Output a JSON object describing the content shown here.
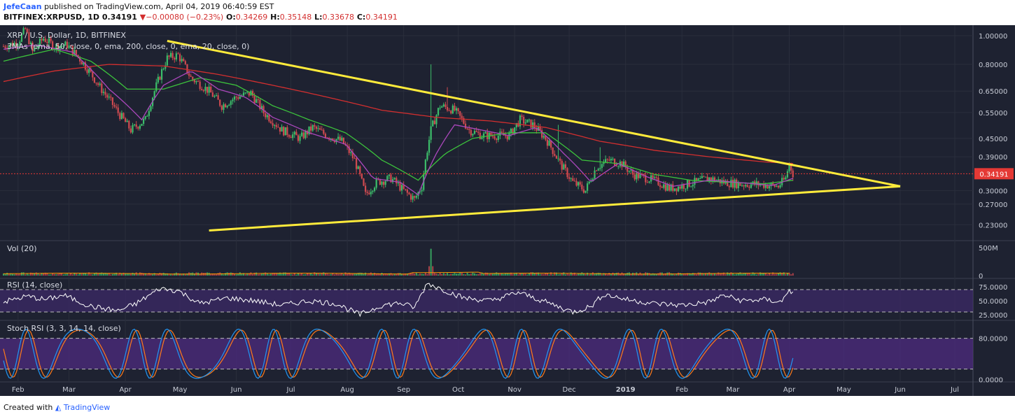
{
  "header": {
    "author": "JefeCaan",
    "published": "published on TradingView.com, April 04, 2019 06:40:59 EST",
    "symbol": "BITFINEX:XRPUSD, 1D",
    "last": "0.34191",
    "arrow": "▼",
    "change": "−0.00080 (−0.23%)",
    "o_label": "O:",
    "o": "0.34269",
    "h_label": "H:",
    "h": "0.35148",
    "l_label": "L:",
    "l": "0.33678",
    "c_label": "C:",
    "c": "0.34191"
  },
  "footer": {
    "created": "Created with",
    "brand": "TradingView"
  },
  "colors": {
    "background": "#1e2231",
    "panel_bg": "#1e2231",
    "grid": "#2a2e3c",
    "up": "#3cbd6a",
    "down": "#d04a50",
    "trendline": "#ffeb3b",
    "ema50": "#ab47bc",
    "ema200_green": "#3cc23c",
    "ema200_red": "#d32f2f",
    "rsi": "#ffffff",
    "rsi_band": "#3d2a6b",
    "stoch_band": "#4a2a7a",
    "stoch_k": "#2196f3",
    "stoch_d": "#ff7a1a",
    "price_line": "#e53935",
    "axis_text": "#c8ccd6"
  },
  "chart_data": {
    "type": "candlestick",
    "title": "XRP / U.S. Dollar, 1D, BITFINEX",
    "indicator_label": "3MAs (ema, 50, close, 0, ema, 200, close, 0, ema, 20, close, 0)",
    "y_scale": "log",
    "ylim": [
      0.21,
      1.05
    ],
    "y_ticks": [
      "1.00000",
      "0.80000",
      "0.65000",
      "0.55000",
      "0.45000",
      "0.39000",
      "0.30000",
      "0.27000",
      "0.23000"
    ],
    "y_tick_values": [
      1.0,
      0.8,
      0.65,
      0.55,
      0.45,
      0.39,
      0.3,
      0.27,
      0.23
    ],
    "last_price_label": "0.34191",
    "last_price": 0.34191,
    "x_labels": [
      "Feb",
      "Mar",
      "Apr",
      "May",
      "Jun",
      "Jul",
      "Aug",
      "Sep",
      "Oct",
      "Nov",
      "Dec",
      "2019",
      "Feb",
      "Mar",
      "Apr",
      "May",
      "Jun",
      "Jul"
    ],
    "x_label_days": [
      0,
      28,
      59,
      89,
      120,
      150,
      181,
      212,
      242,
      273,
      303,
      334,
      365,
      393,
      424,
      454,
      485,
      515
    ],
    "x_range_days": [
      -8,
      525
    ],
    "data_end_day": 426,
    "close_anchors": [
      [
        -8,
        0.92
      ],
      [
        0,
        0.95
      ],
      [
        4,
        1.05
      ],
      [
        8,
        0.88
      ],
      [
        14,
        0.98
      ],
      [
        20,
        0.92
      ],
      [
        27,
        0.93
      ],
      [
        35,
        0.82
      ],
      [
        45,
        0.67
      ],
      [
        55,
        0.55
      ],
      [
        62,
        0.48
      ],
      [
        70,
        0.52
      ],
      [
        75,
        0.65
      ],
      [
        82,
        0.84
      ],
      [
        88,
        0.86
      ],
      [
        95,
        0.72
      ],
      [
        105,
        0.65
      ],
      [
        112,
        0.58
      ],
      [
        120,
        0.62
      ],
      [
        128,
        0.64
      ],
      [
        135,
        0.55
      ],
      [
        145,
        0.48
      ],
      [
        155,
        0.45
      ],
      [
        162,
        0.49
      ],
      [
        170,
        0.46
      ],
      [
        178,
        0.44
      ],
      [
        185,
        0.38
      ],
      [
        191,
        0.29
      ],
      [
        197,
        0.32
      ],
      [
        205,
        0.33
      ],
      [
        212,
        0.3
      ],
      [
        218,
        0.28
      ],
      [
        222,
        0.31
      ],
      [
        227,
        0.48
      ],
      [
        232,
        0.58
      ],
      [
        240,
        0.56
      ],
      [
        248,
        0.48
      ],
      [
        255,
        0.46
      ],
      [
        262,
        0.46
      ],
      [
        270,
        0.46
      ],
      [
        276,
        0.52
      ],
      [
        283,
        0.5
      ],
      [
        290,
        0.45
      ],
      [
        298,
        0.37
      ],
      [
        305,
        0.32
      ],
      [
        312,
        0.3
      ],
      [
        318,
        0.36
      ],
      [
        325,
        0.38
      ],
      [
        332,
        0.37
      ],
      [
        338,
        0.34
      ],
      [
        346,
        0.33
      ],
      [
        352,
        0.32
      ],
      [
        358,
        0.305
      ],
      [
        364,
        0.31
      ],
      [
        372,
        0.32
      ],
      [
        380,
        0.33
      ],
      [
        388,
        0.32
      ],
      [
        398,
        0.315
      ],
      [
        408,
        0.315
      ],
      [
        418,
        0.31
      ],
      [
        422,
        0.33
      ],
      [
        424,
        0.37
      ],
      [
        426,
        0.342
      ]
    ],
    "wick_spikes": [
      [
        227,
        0.8
      ],
      [
        236,
        0.67
      ],
      [
        297,
        0.5
      ],
      [
        320,
        0.42
      ]
    ],
    "ema20_anchors": [
      [
        -8,
        0.9
      ],
      [
        10,
        0.93
      ],
      [
        30,
        0.88
      ],
      [
        50,
        0.66
      ],
      [
        68,
        0.52
      ],
      [
        80,
        0.68
      ],
      [
        95,
        0.76
      ],
      [
        110,
        0.66
      ],
      [
        125,
        0.62
      ],
      [
        140,
        0.53
      ],
      [
        160,
        0.47
      ],
      [
        180,
        0.43
      ],
      [
        195,
        0.33
      ],
      [
        210,
        0.32
      ],
      [
        220,
        0.29
      ],
      [
        230,
        0.4
      ],
      [
        240,
        0.5
      ],
      [
        255,
        0.48
      ],
      [
        270,
        0.46
      ],
      [
        285,
        0.49
      ],
      [
        300,
        0.4
      ],
      [
        315,
        0.32
      ],
      [
        330,
        0.37
      ],
      [
        345,
        0.335
      ],
      [
        360,
        0.31
      ],
      [
        380,
        0.325
      ],
      [
        400,
        0.318
      ],
      [
        415,
        0.312
      ],
      [
        426,
        0.33
      ]
    ],
    "ema50_anchors": [
      [
        -8,
        0.82
      ],
      [
        20,
        0.9
      ],
      [
        40,
        0.82
      ],
      [
        60,
        0.66
      ],
      [
        80,
        0.66
      ],
      [
        100,
        0.72
      ],
      [
        120,
        0.68
      ],
      [
        140,
        0.58
      ],
      [
        160,
        0.52
      ],
      [
        180,
        0.47
      ],
      [
        200,
        0.38
      ],
      [
        220,
        0.325
      ],
      [
        235,
        0.4
      ],
      [
        250,
        0.45
      ],
      [
        270,
        0.47
      ],
      [
        290,
        0.47
      ],
      [
        310,
        0.38
      ],
      [
        330,
        0.37
      ],
      [
        350,
        0.34
      ],
      [
        370,
        0.325
      ],
      [
        390,
        0.32
      ],
      [
        410,
        0.316
      ],
      [
        426,
        0.325
      ]
    ],
    "ema200_anchors": [
      [
        -8,
        0.7
      ],
      [
        20,
        0.76
      ],
      [
        50,
        0.8
      ],
      [
        80,
        0.79
      ],
      [
        110,
        0.74
      ],
      [
        140,
        0.68
      ],
      [
        170,
        0.62
      ],
      [
        200,
        0.56
      ],
      [
        230,
        0.53
      ],
      [
        260,
        0.515
      ],
      [
        290,
        0.49
      ],
      [
        320,
        0.44
      ],
      [
        350,
        0.41
      ],
      [
        380,
        0.39
      ],
      [
        410,
        0.375
      ],
      [
        426,
        0.37
      ]
    ],
    "trendlines": [
      {
        "name": "upper",
        "from": [
          82,
          0.96
        ],
        "to": [
          485,
          0.31
        ]
      },
      {
        "name": "lower",
        "from": [
          105,
          0.22
        ],
        "to": [
          485,
          0.31
        ]
      }
    ],
    "volume": {
      "label": "Vol (20)",
      "ticks": [
        "500M",
        "0"
      ],
      "tick_values": [
        500,
        0
      ],
      "spike_day": 227,
      "spike_value": 480,
      "base_value": 40
    },
    "rsi": {
      "label": "RSI (14, close)",
      "ticks": [
        "75.0000",
        "50.0000",
        "25.0000"
      ],
      "tick_values": [
        75,
        50,
        25
      ],
      "ylim": [
        15,
        90
      ],
      "band": [
        30,
        70
      ],
      "anchors": [
        [
          -8,
          48
        ],
        [
          5,
          58
        ],
        [
          15,
          52
        ],
        [
          25,
          60
        ],
        [
          40,
          40
        ],
        [
          55,
          32
        ],
        [
          65,
          45
        ],
        [
          78,
          72
        ],
        [
          88,
          68
        ],
        [
          100,
          45
        ],
        [
          115,
          55
        ],
        [
          130,
          50
        ],
        [
          145,
          42
        ],
        [
          160,
          50
        ],
        [
          175,
          45
        ],
        [
          188,
          25
        ],
        [
          200,
          42
        ],
        [
          210,
          46
        ],
        [
          218,
          38
        ],
        [
          225,
          82
        ],
        [
          232,
          72
        ],
        [
          245,
          55
        ],
        [
          260,
          50
        ],
        [
          275,
          65
        ],
        [
          290,
          48
        ],
        [
          305,
          30
        ],
        [
          315,
          40
        ],
        [
          322,
          62
        ],
        [
          335,
          52
        ],
        [
          350,
          45
        ],
        [
          365,
          42
        ],
        [
          380,
          48
        ],
        [
          388,
          60
        ],
        [
          398,
          50
        ],
        [
          410,
          52
        ],
        [
          420,
          48
        ],
        [
          424,
          72
        ],
        [
          426,
          62
        ]
      ]
    },
    "stoch_rsi": {
      "label": "Stoch RSI (3, 3, 14, 14, close)",
      "ticks": [
        "80.0000",
        "0.0000"
      ],
      "tick_values": [
        80,
        0
      ],
      "ylim": [
        -5,
        115
      ],
      "band": [
        20,
        80
      ]
    }
  }
}
